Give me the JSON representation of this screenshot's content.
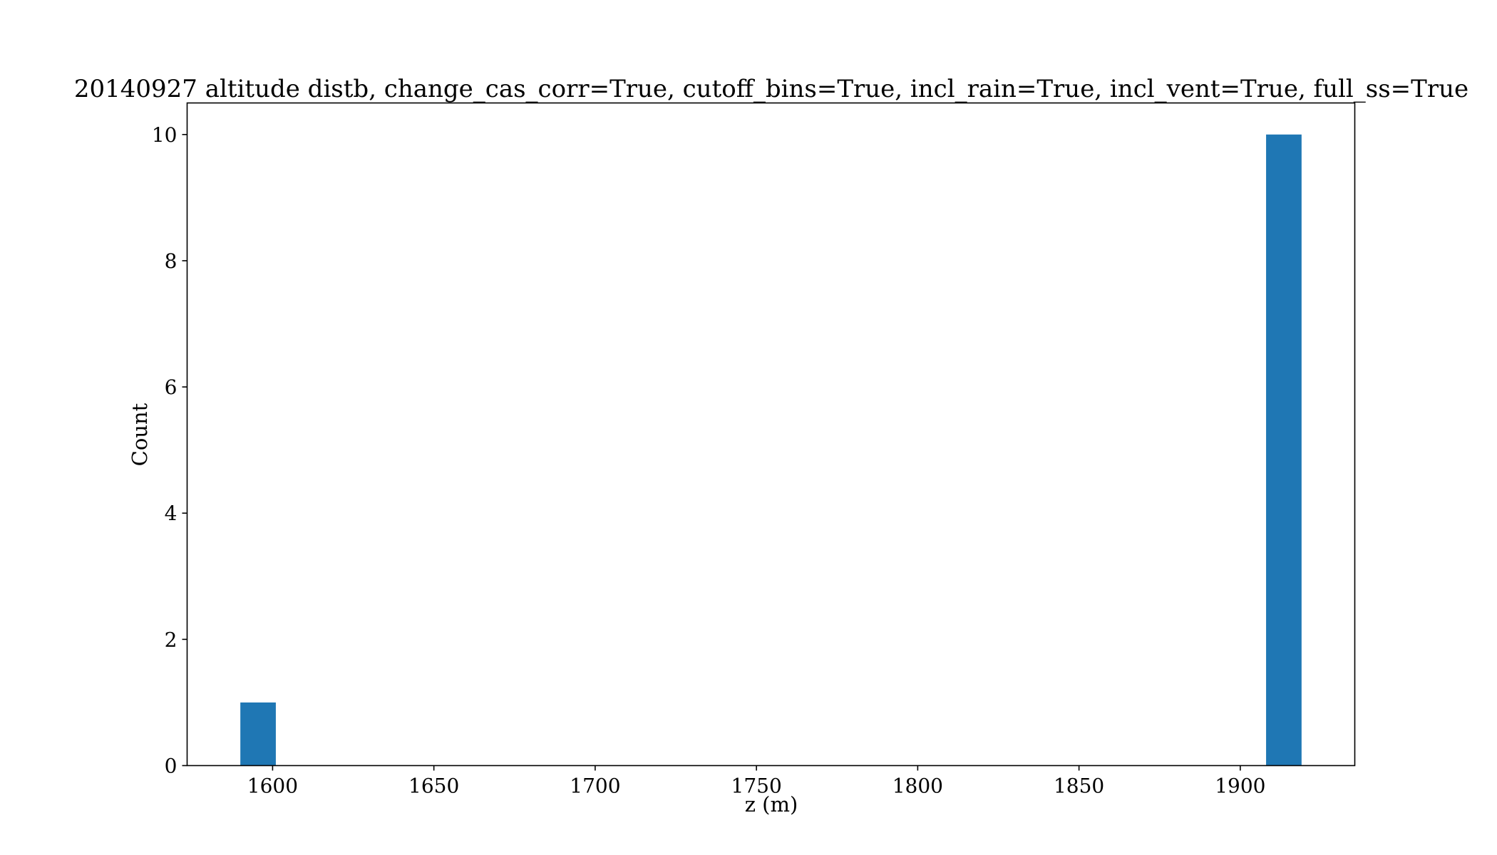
{
  "chart_data": {
    "type": "bar",
    "title": "20140927 altitude distb, change_cas_corr=True, cutoff_bins=True, incl_rain=True, incl_vent=True, full_ss=True",
    "xlabel": "z (m)",
    "ylabel": "Count",
    "xlim": [
      1573.5,
      1935.5
    ],
    "ylim": [
      0,
      10.5
    ],
    "xticks": [
      1600,
      1650,
      1700,
      1750,
      1800,
      1850,
      1900
    ],
    "xtick_labels": [
      "1600",
      "1650",
      "1700",
      "1750",
      "1800",
      "1850",
      "1900"
    ],
    "yticks": [
      0,
      2,
      4,
      6,
      8,
      10
    ],
    "ytick_labels": [
      "0",
      "2",
      "4",
      "6",
      "8",
      "10"
    ],
    "bin_width": 11,
    "bins": [
      {
        "x_start": 1590,
        "x_end": 1601,
        "count": 1
      },
      {
        "x_start": 1908,
        "x_end": 1919,
        "count": 10
      }
    ],
    "bar_color": "#1f77b4",
    "grid": false,
    "legend": false
  }
}
